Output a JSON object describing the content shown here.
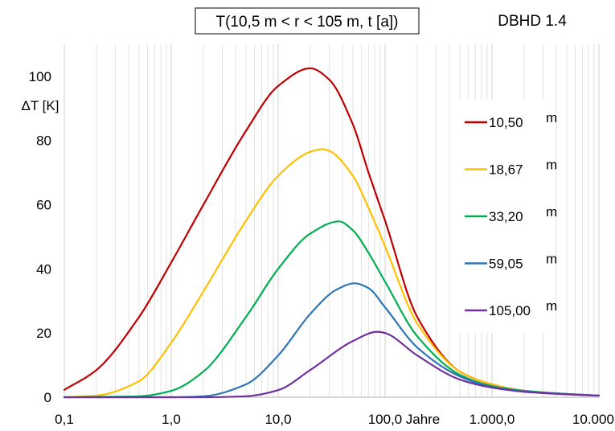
{
  "chart_data": {
    "type": "line",
    "title": "T(10,5 m <  r <  105 m, t [a])",
    "subtitle": "DBHD 1.4",
    "xlabel": "Jahre",
    "ylabel": "ΔT [K]",
    "xscale": "log",
    "xlim": [
      0.1,
      10000
    ],
    "ylim": [
      0,
      110
    ],
    "x_ticks": [
      0.1,
      1,
      10,
      100,
      1000,
      10000
    ],
    "x_tick_labels": [
      "0,1",
      "1,0",
      "10,0",
      "100,0",
      "1.000,0",
      "10.000,0"
    ],
    "y_ticks": [
      0,
      20,
      40,
      60,
      80,
      100
    ],
    "y_tick_labels": [
      "0",
      "20",
      "40",
      "60",
      "80",
      "100"
    ],
    "grid": "vertical minor log gridlines",
    "legend_position": "right",
    "legend_unit": "m",
    "series": [
      {
        "name": "10,50",
        "color": "#C00000",
        "peak_x": 20,
        "peak_y": 102.5,
        "x": [
          0.1,
          0.2,
          0.5,
          1,
          2,
          5,
          10,
          20,
          30,
          50,
          70,
          100,
          200,
          500,
          1000,
          2000,
          5000,
          10000
        ],
        "y": [
          2.3,
          8.5,
          25,
          42,
          60,
          83,
          97,
          102.5,
          99,
          85,
          70,
          55,
          25,
          8,
          4,
          2,
          1,
          0.5
        ]
      },
      {
        "name": "18,67",
        "color": "#FFC000",
        "peak_x": 26,
        "peak_y": 77.3,
        "x": [
          0.1,
          0.2,
          0.5,
          1,
          2,
          5,
          10,
          20,
          26,
          30,
          50,
          70,
          100,
          200,
          500,
          1000,
          2000,
          5000,
          10000
        ],
        "y": [
          0,
          0.5,
          5,
          17,
          33,
          55,
          69,
          76.5,
          77.3,
          76.8,
          69,
          59,
          47,
          23,
          8,
          4,
          2,
          1,
          0.5
        ]
      },
      {
        "name": "33,20",
        "color": "#00B050",
        "peak_x": 37,
        "peak_y": 54.8,
        "x": [
          0.1,
          0.5,
          1,
          2,
          5,
          10,
          20,
          37,
          50,
          70,
          100,
          200,
          500,
          1000,
          2000,
          5000,
          10000
        ],
        "y": [
          0,
          0.3,
          2,
          8,
          25,
          40,
          51,
          54.8,
          52,
          45,
          36,
          19,
          7,
          3.5,
          2,
          1,
          0.5
        ]
      },
      {
        "name": "59,05",
        "color": "#2E75B6",
        "peak_x": 52,
        "peak_y": 35.5,
        "x": [
          0.1,
          1,
          2,
          5,
          10,
          20,
          35,
          52,
          70,
          100,
          200,
          500,
          1000,
          2000,
          5000,
          10000
        ],
        "y": [
          0,
          0,
          0.3,
          4,
          13,
          26,
          33.5,
          35.5,
          34,
          28,
          15.5,
          6.5,
          3.2,
          1.8,
          1,
          0.5
        ]
      },
      {
        "name": "105,00",
        "color": "#7030A0",
        "peak_x": 85,
        "peak_y": 20.4,
        "x": [
          0.1,
          1,
          2,
          5,
          10,
          20,
          50,
          85,
          100,
          200,
          500,
          1000,
          2000,
          5000,
          10000
        ],
        "y": [
          0,
          0,
          0,
          0.3,
          2.2,
          8.5,
          17.5,
          20.4,
          20,
          13,
          5.5,
          3,
          1.7,
          0.9,
          0.5
        ]
      }
    ]
  }
}
